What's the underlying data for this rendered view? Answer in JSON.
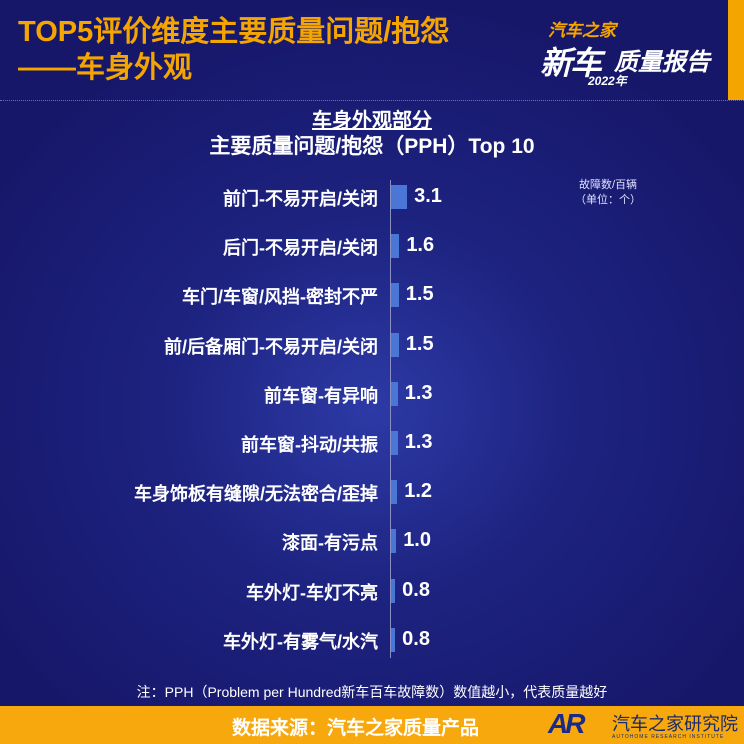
{
  "header": {
    "title_line1": "TOP5评价维度主要质量问题/抱怨",
    "title_line2": "——车身外观"
  },
  "logo": {
    "line1": "汽车之家",
    "line2": "新车",
    "line3": "质量报告",
    "line4": "2022年"
  },
  "chart_data": {
    "type": "bar",
    "orientation": "horizontal",
    "title": "车身外观部分",
    "subtitle": "主要质量问题/抱怨（PPH）Top 10",
    "unit_line1": "故障数/百辆",
    "unit_line2": "（单位：个）",
    "categories": [
      "前门-不易开启/关闭",
      "后门-不易开启/关闭",
      "车门/车窗/风挡-密封不严",
      "前/后备厢门-不易开启/关闭",
      "前车窗-有异响",
      "前车窗-抖动/共振",
      "车身饰板有缝隙/无法密合/歪掉",
      "漆面-有污点",
      "车外灯-车灯不亮",
      "车外灯-有雾气/水汽"
    ],
    "values": [
      3.1,
      1.6,
      1.5,
      1.5,
      1.3,
      1.3,
      1.2,
      1.0,
      0.8,
      0.8
    ],
    "value_labels": [
      "3.1",
      "1.6",
      "1.5",
      "1.5",
      "1.3",
      "1.3",
      "1.2",
      "1.0",
      "0.8",
      "0.8"
    ],
    "bar_color": "#4a77d6"
  },
  "note": "注：PPH（Problem per Hundred新车百车故障数）数值越小，代表质量越好",
  "footer": {
    "source": "数据来源：汽车之家质量产品",
    "brand_mark": "AR",
    "institute": "汽车之家研究院",
    "institute_en": "AUTOHOME RESEARCH INSTITUTE"
  },
  "colors": {
    "accent": "#f5a500",
    "background": "#1d2380"
  }
}
